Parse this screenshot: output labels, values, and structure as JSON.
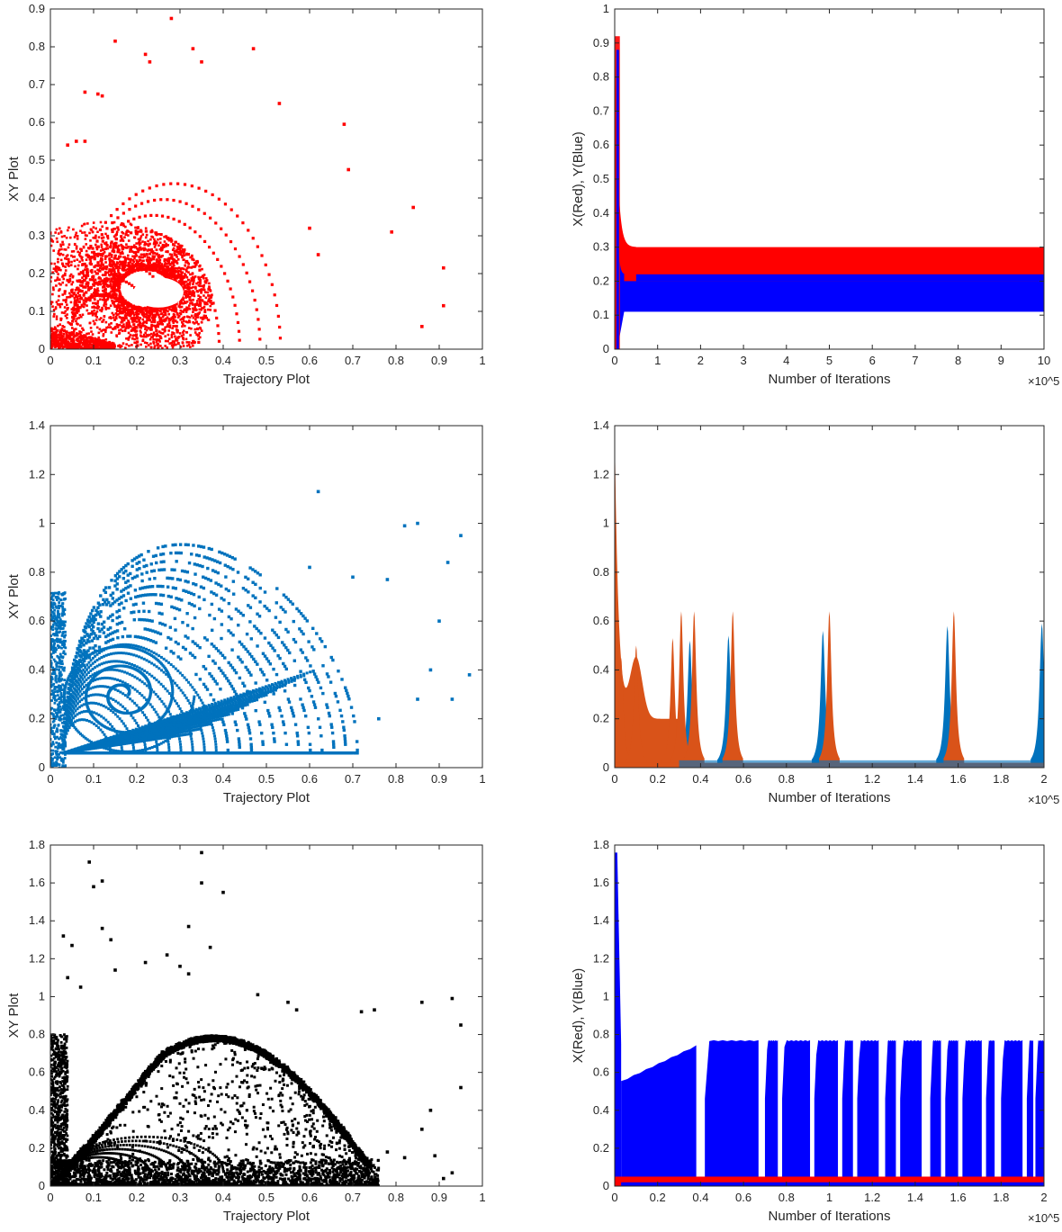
{
  "figure": {
    "background": "#ffffff",
    "axis_color": "#262626"
  },
  "chart_data": [
    {
      "id": "p1",
      "type": "scatter",
      "xlabel": "Trajectory Plot",
      "ylabel": "XY Plot",
      "xlim": [
        0,
        1
      ],
      "ylim": [
        0,
        0.9
      ],
      "xticks": [
        0,
        0.1,
        0.2,
        0.3,
        0.4,
        0.5,
        0.6,
        0.7,
        0.8,
        0.9,
        1
      ],
      "xtick_labels": [
        "0",
        "0.1",
        "0.2",
        "0.3",
        "0.4",
        "0.5",
        "0.6",
        "0.7",
        "0.8",
        "0.9",
        "1"
      ],
      "yticks": [
        0,
        0.1,
        0.2,
        0.3,
        0.4,
        0.5,
        0.6,
        0.7,
        0.8,
        0.9
      ],
      "ytick_labels": [
        "0",
        "0.1",
        "0.2",
        "0.3",
        "0.4",
        "0.5",
        "0.6",
        "0.7",
        "0.8",
        "0.9"
      ],
      "color": "#ff0000",
      "attractor": {
        "center": [
          0.25,
          0.17
        ],
        "rx_inner": 0.06,
        "ry_inner": 0.04,
        "rx_outer": 0.2,
        "ry_outer": 0.15
      },
      "sparse_points": [
        [
          0.28,
          0.875
        ],
        [
          0.15,
          0.815
        ],
        [
          0.22,
          0.78
        ],
        [
          0.23,
          0.76
        ],
        [
          0.33,
          0.795
        ],
        [
          0.35,
          0.76
        ],
        [
          0.47,
          0.795
        ],
        [
          0.08,
          0.68
        ],
        [
          0.11,
          0.675
        ],
        [
          0.12,
          0.67
        ],
        [
          0.53,
          0.65
        ],
        [
          0.68,
          0.595
        ],
        [
          0.69,
          0.475
        ],
        [
          0.84,
          0.375
        ],
        [
          0.79,
          0.31
        ],
        [
          0.91,
          0.215
        ],
        [
          0.91,
          0.115
        ],
        [
          0.86,
          0.06
        ],
        [
          0.06,
          0.55
        ],
        [
          0.08,
          0.55
        ],
        [
          0.04,
          0.54
        ],
        [
          0.6,
          0.32
        ],
        [
          0.62,
          0.25
        ]
      ]
    },
    {
      "id": "p2",
      "type": "line",
      "xlabel": "Number of Iterations",
      "ylabel": "X(Red), Y(Blue)",
      "exponent_label": "×10^5",
      "xlim": [
        0,
        10
      ],
      "ylim": [
        0,
        1
      ],
      "xticks": [
        0,
        1,
        2,
        3,
        4,
        5,
        6,
        7,
        8,
        9,
        10
      ],
      "xtick_labels": [
        "0",
        "1",
        "2",
        "3",
        "4",
        "5",
        "6",
        "7",
        "8",
        "9",
        "10"
      ],
      "yticks": [
        0,
        0.1,
        0.2,
        0.3,
        0.4,
        0.5,
        0.6,
        0.7,
        0.8,
        0.9,
        1
      ],
      "ytick_labels": [
        "0",
        "0.1",
        "0.2",
        "0.3",
        "0.4",
        "0.5",
        "0.6",
        "0.7",
        "0.8",
        "0.9",
        "1"
      ],
      "series": [
        {
          "name": "X",
          "color": "#ff0000",
          "band": [
            0.2,
            0.3
          ],
          "transient_peak": 0.92
        },
        {
          "name": "Y",
          "color": "#0000ff",
          "band": [
            0.11,
            0.22
          ],
          "transient_peak": 0.9
        }
      ]
    },
    {
      "id": "p3",
      "type": "scatter",
      "xlabel": "Trajectory Plot",
      "ylabel": "XY Plot",
      "xlim": [
        0,
        1
      ],
      "ylim": [
        0,
        1.4
      ],
      "xticks": [
        0,
        0.1,
        0.2,
        0.3,
        0.4,
        0.5,
        0.6,
        0.7,
        0.8,
        0.9,
        1
      ],
      "xtick_labels": [
        "0",
        "0.1",
        "0.2",
        "0.3",
        "0.4",
        "0.5",
        "0.6",
        "0.7",
        "0.8",
        "0.9",
        "1"
      ],
      "yticks": [
        0,
        0.2,
        0.4,
        0.6,
        0.8,
        1,
        1.2,
        1.4
      ],
      "ytick_labels": [
        "0",
        "0.2",
        "0.4",
        "0.6",
        "0.8",
        "1",
        "1.2",
        "1.4"
      ],
      "color": "#0072bd",
      "spiral": {
        "center": [
          0.17,
          0.3
        ],
        "innermost": [
          0.035,
          0.05
        ],
        "outermost": [
          0.55,
          0.86
        ]
      },
      "sparse_points": [
        [
          0.97,
          0.38
        ],
        [
          0.95,
          0.95
        ],
        [
          0.92,
          0.84
        ],
        [
          0.85,
          1.0
        ],
        [
          0.82,
          0.99
        ],
        [
          0.9,
          0.6
        ],
        [
          0.88,
          0.4
        ],
        [
          0.93,
          0.28
        ],
        [
          0.78,
          0.77
        ],
        [
          0.7,
          0.78
        ],
        [
          0.62,
          1.13
        ],
        [
          0.6,
          0.82
        ],
        [
          0.76,
          0.2
        ],
        [
          0.85,
          0.28
        ]
      ]
    },
    {
      "id": "p4",
      "type": "line",
      "xlabel": "Number of Iterations",
      "ylabel": "",
      "exponent_label": "×10^5",
      "xlim": [
        0,
        2
      ],
      "ylim": [
        0,
        1.4
      ],
      "xticks": [
        0,
        0.2,
        0.4,
        0.6,
        0.8,
        1,
        1.2,
        1.4,
        1.6,
        1.8,
        2
      ],
      "xtick_labels": [
        "0",
        "0.2",
        "0.4",
        "0.6",
        "0.8",
        "1",
        "1.2",
        "1.4",
        "1.6",
        "1.8",
        "2"
      ],
      "yticks": [
        0,
        0.2,
        0.4,
        0.6,
        0.8,
        1,
        1.2,
        1.4
      ],
      "ytick_labels": [
        "0",
        "0.2",
        "0.4",
        "0.6",
        "0.8",
        "1",
        "1.2",
        "1.4"
      ],
      "series": [
        {
          "name": "Y",
          "color": "#0072bd",
          "peaks": [
            [
              0.35,
              0.52
            ],
            [
              0.53,
              0.54
            ],
            [
              0.97,
              0.56
            ],
            [
              1.55,
              0.58
            ],
            [
              1.99,
              0.59
            ]
          ]
        },
        {
          "name": "X",
          "color": "#d95319",
          "initial_peak": 1.37,
          "peaks": [
            [
              0.03,
              0.45
            ],
            [
              0.1,
              0.5
            ],
            [
              0.27,
              0.53
            ],
            [
              0.31,
              0.64
            ],
            [
              0.37,
              0.64
            ],
            [
              0.55,
              0.64
            ],
            [
              1.0,
              0.64
            ],
            [
              1.58,
              0.64
            ]
          ]
        }
      ]
    },
    {
      "id": "p5",
      "type": "scatter",
      "xlabel": "Trajectory Plot",
      "ylabel": "XY Plot",
      "xlim": [
        0,
        1
      ],
      "ylim": [
        0,
        1.8
      ],
      "xticks": [
        0,
        0.1,
        0.2,
        0.3,
        0.4,
        0.5,
        0.6,
        0.7,
        0.8,
        0.9,
        1
      ],
      "xtick_labels": [
        "0",
        "0.1",
        "0.2",
        "0.3",
        "0.4",
        "0.5",
        "0.6",
        "0.7",
        "0.8",
        "0.9",
        "1"
      ],
      "yticks": [
        0,
        0.2,
        0.4,
        0.6,
        0.8,
        1,
        1.2,
        1.4,
        1.6,
        1.8
      ],
      "ytick_labels": [
        "0",
        "0.2",
        "0.4",
        "0.6",
        "0.8",
        "1",
        "1.2",
        "1.4",
        "1.6",
        "1.8"
      ],
      "color": "#000000",
      "attractor": {
        "peak": [
          0.27,
          0.78
        ],
        "right_end": [
          0.74,
          0.12
        ]
      },
      "sparse_points": [
        [
          0.35,
          1.76
        ],
        [
          0.09,
          1.71
        ],
        [
          0.1,
          1.58
        ],
        [
          0.12,
          1.61
        ],
        [
          0.35,
          1.6
        ],
        [
          0.4,
          1.55
        ],
        [
          0.12,
          1.36
        ],
        [
          0.14,
          1.3
        ],
        [
          0.32,
          1.37
        ],
        [
          0.37,
          1.26
        ],
        [
          0.03,
          1.32
        ],
        [
          0.05,
          1.27
        ],
        [
          0.27,
          1.22
        ],
        [
          0.22,
          1.18
        ],
        [
          0.3,
          1.16
        ],
        [
          0.32,
          1.12
        ],
        [
          0.15,
          1.14
        ],
        [
          0.04,
          1.1
        ],
        [
          0.07,
          1.05
        ],
        [
          0.48,
          1.01
        ],
        [
          0.55,
          0.97
        ],
        [
          0.57,
          0.93
        ],
        [
          0.72,
          0.92
        ],
        [
          0.75,
          0.93
        ],
        [
          0.86,
          0.97
        ],
        [
          0.93,
          0.99
        ],
        [
          0.95,
          0.85
        ],
        [
          0.88,
          0.4
        ],
        [
          0.95,
          0.52
        ],
        [
          0.86,
          0.3
        ],
        [
          0.89,
          0.16
        ],
        [
          0.93,
          0.07
        ],
        [
          0.91,
          0.04
        ],
        [
          0.78,
          0.18
        ],
        [
          0.82,
          0.15
        ]
      ]
    },
    {
      "id": "p6",
      "type": "line",
      "xlabel": "Number of Iterations",
      "ylabel": "X(Red), Y(Blue)",
      "exponent_label": "×10^5",
      "xlim": [
        0,
        2
      ],
      "ylim": [
        0,
        1.8
      ],
      "xticks": [
        0,
        0.2,
        0.4,
        0.6,
        0.8,
        1,
        1.2,
        1.4,
        1.6,
        1.8,
        2
      ],
      "xtick_labels": [
        "0",
        "0.2",
        "0.4",
        "0.6",
        "0.8",
        "1",
        "1.2",
        "1.4",
        "1.6",
        "1.8",
        "2"
      ],
      "yticks": [
        0,
        0.2,
        0.4,
        0.6,
        0.8,
        1,
        1.2,
        1.4,
        1.6,
        1.8
      ],
      "ytick_labels": [
        "0",
        "0.2",
        "0.4",
        "0.6",
        "0.8",
        "1",
        "1.2",
        "1.4",
        "1.6",
        "1.8"
      ],
      "series": [
        {
          "name": "X",
          "color": "#ff0000",
          "max": 0.05
        },
        {
          "name": "Y",
          "color": "#0000ff",
          "initial_peak": 1.76,
          "upper": 0.77,
          "gaps": [
            [
              0.38,
              0.42
            ],
            [
              0.67,
              0.7
            ],
            [
              0.76,
              0.78
            ],
            [
              0.91,
              0.93
            ],
            [
              1.04,
              1.06
            ],
            [
              1.11,
              1.13
            ],
            [
              1.23,
              1.26
            ],
            [
              1.31,
              1.33
            ],
            [
              1.43,
              1.47
            ],
            [
              1.52,
              1.54
            ],
            [
              1.6,
              1.62
            ],
            [
              1.71,
              1.73
            ],
            [
              1.77,
              1.8
            ],
            [
              1.9,
              1.92
            ],
            [
              1.95,
              1.96
            ]
          ]
        }
      ]
    }
  ]
}
